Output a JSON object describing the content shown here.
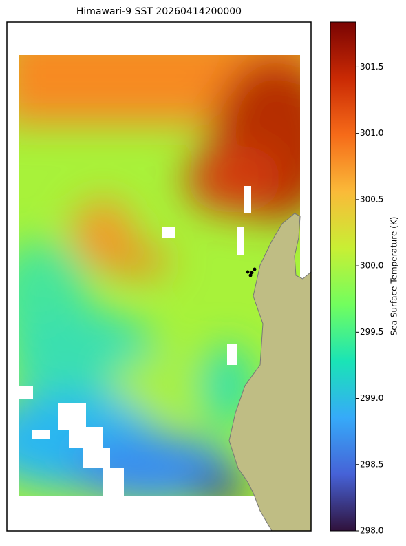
{
  "chart_data": {
    "type": "heatmap",
    "title": "Himawari-9 SST 20260414200000",
    "colorbar_label": "Sea Surface Temperature (K)",
    "colormap": "turbo",
    "clim": [
      298.0,
      301.84
    ],
    "cticks": [
      {
        "value": 298.0,
        "label": "298.0"
      },
      {
        "value": 298.5,
        "label": "298.5"
      },
      {
        "value": 299.0,
        "label": "299.0"
      },
      {
        "value": 299.5,
        "label": "299.5"
      },
      {
        "value": 300.0,
        "label": "300.0"
      },
      {
        "value": 300.5,
        "label": "300.5"
      },
      {
        "value": 301.0,
        "label": "301.0"
      },
      {
        "value": 301.5,
        "label": "301.5"
      }
    ]
  }
}
